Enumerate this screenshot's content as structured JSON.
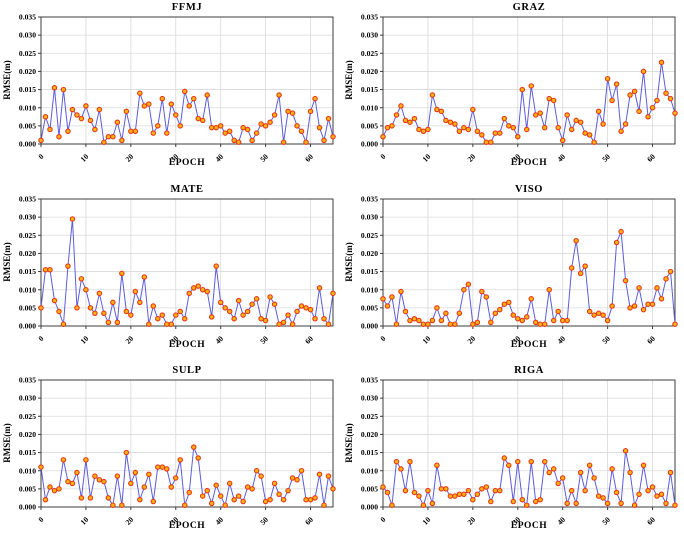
{
  "style": {
    "line_color": "#5C5CDC",
    "marker_fill": "#FFB20F",
    "marker_edge": "#E2391B",
    "grid_color": "#D9D9D9",
    "axis_color": "#3C3C3C",
    "background": "#FFFFFF",
    "text_color": "#000000"
  },
  "chart_data": [
    {
      "type": "line",
      "title": "FFMJ",
      "xlabel": "EPOCH",
      "ylabel": "RMSE(m)",
      "xlim": [
        0,
        65
      ],
      "ylim": [
        0,
        0.035
      ],
      "grid": true,
      "legend": "none",
      "xticks": [
        0,
        10,
        20,
        30,
        40,
        50,
        60
      ],
      "yticks": [
        "0.000",
        "0.005",
        "0.010",
        "0.015",
        "0.020",
        "0.025",
        "0.030",
        "0.035"
      ],
      "x_start": 0,
      "x_step": 1,
      "values": [
        0.001,
        0.0075,
        0.004,
        0.0155,
        0.002,
        0.015,
        0.0035,
        0.0095,
        0.008,
        0.007,
        0.0105,
        0.0065,
        0.004,
        0.0095,
        0.0005,
        0.002,
        0.002,
        0.006,
        0.001,
        0.009,
        0.0035,
        0.0035,
        0.014,
        0.0105,
        0.011,
        0.003,
        0.005,
        0.0125,
        0.003,
        0.011,
        0.008,
        0.005,
        0.0145,
        0.0105,
        0.0125,
        0.007,
        0.0065,
        0.0135,
        0.0045,
        0.0045,
        0.005,
        0.003,
        0.0035,
        0.001,
        0.0005,
        0.0045,
        0.004,
        0.001,
        0.003,
        0.0055,
        0.005,
        0.006,
        0.008,
        0.0135,
        0.0005,
        0.009,
        0.0085,
        0.005,
        0.0035,
        0.0005,
        0.009,
        0.0125,
        0.0045,
        0.001,
        0.007,
        0.002
      ]
    },
    {
      "type": "line",
      "title": "GRAZ",
      "xlabel": "EPOCH",
      "ylabel": "RMSE(m)",
      "xlim": [
        0,
        65
      ],
      "ylim": [
        0,
        0.035
      ],
      "grid": true,
      "legend": "none",
      "xticks": [
        0,
        10,
        20,
        30,
        40,
        50,
        60
      ],
      "yticks": [
        "0.000",
        "0.005",
        "0.010",
        "0.015",
        "0.020",
        "0.025",
        "0.030",
        "0.035"
      ],
      "x_start": 0,
      "x_step": 1,
      "values": [
        0.002,
        0.0045,
        0.005,
        0.008,
        0.0105,
        0.0065,
        0.006,
        0.007,
        0.004,
        0.0035,
        0.004,
        0.0135,
        0.0095,
        0.009,
        0.0065,
        0.006,
        0.0055,
        0.0035,
        0.0045,
        0.004,
        0.0095,
        0.0035,
        0.0025,
        0.0005,
        0.0005,
        0.003,
        0.003,
        0.007,
        0.005,
        0.0045,
        0.002,
        0.015,
        0.004,
        0.016,
        0.008,
        0.0085,
        0.0045,
        0.0125,
        0.012,
        0.0045,
        0.001,
        0.008,
        0.004,
        0.0065,
        0.006,
        0.003,
        0.0025,
        0.0005,
        0.009,
        0.0055,
        0.018,
        0.012,
        0.0165,
        0.0035,
        0.0055,
        0.0135,
        0.0145,
        0.009,
        0.02,
        0.0075,
        0.01,
        0.012,
        0.0225,
        0.014,
        0.0125,
        0.0085
      ]
    },
    {
      "type": "line",
      "title": "MATE",
      "xlabel": "EPOCH",
      "ylabel": "RMSE(m)",
      "xlim": [
        0,
        65
      ],
      "ylim": [
        0,
        0.035
      ],
      "grid": true,
      "legend": "none",
      "xticks": [
        0,
        10,
        20,
        30,
        40,
        50,
        60
      ],
      "yticks": [
        "0.000",
        "0.005",
        "0.010",
        "0.015",
        "0.020",
        "0.025",
        "0.030",
        "0.035"
      ],
      "x_start": 0,
      "x_step": 1,
      "values": [
        0.005,
        0.0155,
        0.0155,
        0.007,
        0.004,
        0.0005,
        0.0165,
        0.0295,
        0.005,
        0.013,
        0.01,
        0.005,
        0.0035,
        0.009,
        0.0035,
        0.001,
        0.0065,
        0.001,
        0.0145,
        0.004,
        0.003,
        0.0095,
        0.0065,
        0.0135,
        0.0005,
        0.0055,
        0.002,
        0.003,
        0.0005,
        0.0005,
        0.003,
        0.004,
        0.002,
        0.009,
        0.0105,
        0.011,
        0.01,
        0.0095,
        0.0025,
        0.0165,
        0.0065,
        0.005,
        0.004,
        0.002,
        0.007,
        0.003,
        0.004,
        0.006,
        0.0075,
        0.002,
        0.0015,
        0.008,
        0.006,
        0.0005,
        0.001,
        0.003,
        0.0005,
        0.004,
        0.0055,
        0.005,
        0.0045,
        0.002,
        0.0105,
        0.002,
        0.0005,
        0.009
      ]
    },
    {
      "type": "line",
      "title": "VISO",
      "xlabel": "EPOCH",
      "ylabel": "RMSE(m)",
      "xlim": [
        0,
        65
      ],
      "ylim": [
        0,
        0.035
      ],
      "grid": true,
      "legend": "none",
      "xticks": [
        0,
        10,
        20,
        30,
        40,
        50,
        60
      ],
      "yticks": [
        "0.000",
        "0.005",
        "0.010",
        "0.015",
        "0.020",
        "0.025",
        "0.030",
        "0.035"
      ],
      "x_start": 0,
      "x_step": 1,
      "values": [
        0.0075,
        0.0055,
        0.008,
        0.0005,
        0.0095,
        0.004,
        0.0015,
        0.002,
        0.0015,
        0.0005,
        0.0005,
        0.0015,
        0.005,
        0.0015,
        0.0035,
        0.0005,
        0.0005,
        0.0035,
        0.01,
        0.0115,
        0.0005,
        0.001,
        0.0095,
        0.008,
        0.001,
        0.0035,
        0.0045,
        0.006,
        0.0065,
        0.003,
        0.002,
        0.0015,
        0.0025,
        0.0075,
        0.001,
        0.0005,
        0.0005,
        0.01,
        0.0015,
        0.004,
        0.0015,
        0.0015,
        0.016,
        0.0235,
        0.0145,
        0.0165,
        0.004,
        0.003,
        0.0035,
        0.003,
        0.0015,
        0.0055,
        0.023,
        0.026,
        0.0125,
        0.005,
        0.0055,
        0.0105,
        0.0045,
        0.006,
        0.006,
        0.0105,
        0.0075,
        0.013,
        0.015,
        0.0005
      ]
    },
    {
      "type": "line",
      "title": "SULP",
      "xlabel": "EPOCH",
      "ylabel": "RMSE(m)",
      "xlim": [
        0,
        65
      ],
      "ylim": [
        0,
        0.035
      ],
      "grid": true,
      "legend": "none",
      "xticks": [
        0,
        10,
        20,
        30,
        40,
        50,
        60
      ],
      "yticks": [
        "0.000",
        "0.005",
        "0.010",
        "0.015",
        "0.020",
        "0.025",
        "0.030",
        "0.035"
      ],
      "x_start": 0,
      "x_step": 1,
      "values": [
        0.011,
        0.002,
        0.0055,
        0.0045,
        0.005,
        0.013,
        0.007,
        0.0065,
        0.0095,
        0.0025,
        0.013,
        0.0025,
        0.0085,
        0.0075,
        0.007,
        0.0025,
        0.0005,
        0.0085,
        0.0005,
        0.015,
        0.0065,
        0.0095,
        0.002,
        0.0055,
        0.009,
        0.0015,
        0.011,
        0.011,
        0.0105,
        0.0055,
        0.008,
        0.013,
        0.0005,
        0.004,
        0.0165,
        0.0135,
        0.003,
        0.0045,
        0.001,
        0.006,
        0.003,
        0.0005,
        0.0065,
        0.002,
        0.003,
        0.0015,
        0.0055,
        0.005,
        0.01,
        0.0085,
        0.0015,
        0.002,
        0.0065,
        0.0035,
        0.002,
        0.0045,
        0.008,
        0.0075,
        0.01,
        0.002,
        0.002,
        0.0025,
        0.009,
        0.0005,
        0.0085,
        0.005
      ]
    },
    {
      "type": "line",
      "title": "RIGA",
      "xlabel": "EPOCH",
      "ylabel": "RMSE(m)",
      "xlim": [
        0,
        65
      ],
      "ylim": [
        0,
        0.035
      ],
      "grid": true,
      "legend": "none",
      "xticks": [
        0,
        10,
        20,
        30,
        40,
        50,
        60
      ],
      "yticks": [
        "0.000",
        "0.005",
        "0.010",
        "0.015",
        "0.020",
        "0.025",
        "0.030",
        "0.035"
      ],
      "x_start": 0,
      "x_step": 1,
      "values": [
        0.0055,
        0.004,
        0.0005,
        0.0125,
        0.0105,
        0.0045,
        0.0125,
        0.004,
        0.003,
        0.0005,
        0.0045,
        0.001,
        0.0115,
        0.005,
        0.005,
        0.003,
        0.003,
        0.0035,
        0.0035,
        0.0045,
        0.002,
        0.0035,
        0.005,
        0.0055,
        0.0015,
        0.0045,
        0.0045,
        0.0135,
        0.0115,
        0.0015,
        0.0125,
        0.002,
        0.0005,
        0.0125,
        0.0015,
        0.002,
        0.0125,
        0.0095,
        0.0105,
        0.0065,
        0.008,
        0.001,
        0.0045,
        0.001,
        0.0095,
        0.0045,
        0.0115,
        0.008,
        0.003,
        0.0025,
        0.001,
        0.0105,
        0.004,
        0.001,
        0.0155,
        0.0095,
        0.0005,
        0.0035,
        0.0115,
        0.0045,
        0.0055,
        0.003,
        0.0035,
        0.001,
        0.0095,
        0.0005
      ]
    }
  ]
}
